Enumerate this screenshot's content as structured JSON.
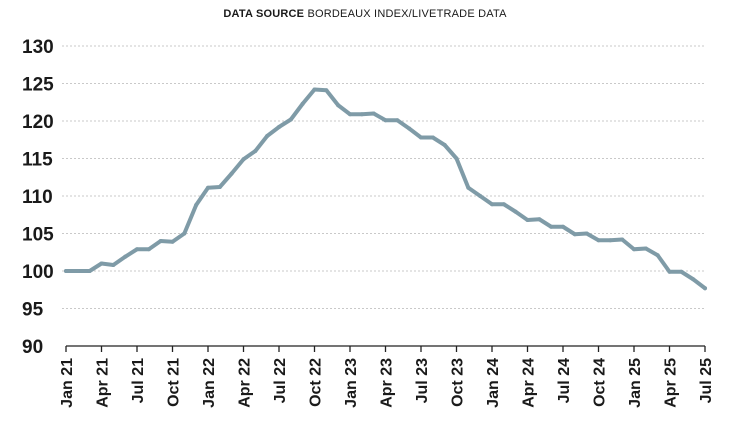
{
  "source": {
    "label": "DATA SOURCE",
    "text": "BORDEAUX INDEX/LIVETRADE DATA"
  },
  "chart_data": {
    "type": "line",
    "title": "",
    "xlabel": "",
    "ylabel": "",
    "ylim": [
      90,
      130
    ],
    "yticks": [
      90,
      95,
      100,
      105,
      110,
      115,
      120,
      125,
      130
    ],
    "grid": "horizontal",
    "line_color": "#7f9ba7",
    "xtick_labels": [
      "Jan 21",
      "Apr 21",
      "Jul 21",
      "Oct 21",
      "Jan 22",
      "Apr 22",
      "Jul 22",
      "Oct 22",
      "Jan 23",
      "Apr 23",
      "Jul 23",
      "Oct 23",
      "Jan 24",
      "Apr 24",
      "Jul 24",
      "Oct 24",
      "Jan 25",
      "Apr 25",
      "Jul 25"
    ],
    "series": [
      {
        "x": [
          "Jan 21",
          "Feb 21",
          "Mar 21",
          "Apr 21",
          "May 21",
          "Jun 21",
          "Jul 21",
          "Aug 21",
          "Sep 21",
          "Oct 21",
          "Nov 21",
          "Dec 21",
          "Jan 22",
          "Feb 22",
          "Mar 22",
          "Apr 22",
          "May 22",
          "Jun 22",
          "Jul 22",
          "Aug 22",
          "Sep 22",
          "Oct 22",
          "Nov 22",
          "Dec 22",
          "Jan 23",
          "Feb 23",
          "Mar 23",
          "Apr 23",
          "May 23",
          "Jun 23",
          "Jul 23",
          "Aug 23",
          "Sep 23",
          "Oct 23",
          "Nov 23",
          "Dec 23",
          "Jan 24",
          "Feb 24",
          "Mar 24",
          "Apr 24",
          "May 24",
          "Jun 24",
          "Jul 24",
          "Aug 24",
          "Sep 24",
          "Oct 24",
          "Nov 24",
          "Dec 24",
          "Jan 25",
          "Feb 25",
          "Mar 25",
          "Apr 25",
          "May 25",
          "Jun 25",
          "Jul 25"
        ],
        "values": [
          100.0,
          100.0,
          100.0,
          101.0,
          100.8,
          101.9,
          102.9,
          102.9,
          104.0,
          103.9,
          105.0,
          108.8,
          111.1,
          111.2,
          113.0,
          114.9,
          116.0,
          118.0,
          119.2,
          120.2,
          122.3,
          124.2,
          124.1,
          122.1,
          120.9,
          120.9,
          121.0,
          120.1,
          120.1,
          119.0,
          117.8,
          117.8,
          116.8,
          115.0,
          111.1,
          110.0,
          108.9,
          108.9,
          107.9,
          106.8,
          106.9,
          105.9,
          105.9,
          104.9,
          105.0,
          104.1,
          104.1,
          104.2,
          102.9,
          103.0,
          102.1,
          99.9,
          99.9,
          98.9,
          97.7
        ]
      }
    ]
  }
}
